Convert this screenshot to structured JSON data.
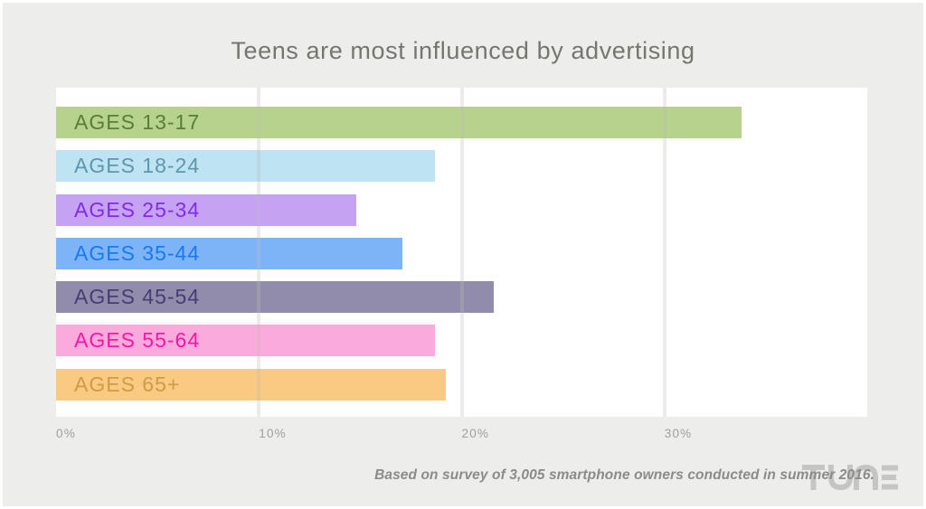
{
  "title": "Teens are most influenced by advertising",
  "footnote": "Based on survey of 3,005 smartphone owners conducted in summer 2016.",
  "brand": "TUNE",
  "colors": {
    "background": "#ededeb",
    "plot_background": "#ffffff",
    "title_text": "#76756f",
    "tick_text": "#a09f9b",
    "footnote_text": "#8b8b8b",
    "gridline": "rgba(190,189,183,0.30)",
    "brand_logo": "#c5c6c3"
  },
  "chart_data": {
    "type": "bar",
    "orientation": "horizontal",
    "title": "Teens are most influenced by advertising",
    "categories": [
      "AGES 13-17",
      "AGES 18-24",
      "AGES 25-34",
      "AGES 35-44",
      "AGES 45-54",
      "AGES 55-64",
      "AGES 65+"
    ],
    "values": [
      33.8,
      18.7,
      14.8,
      17.1,
      21.6,
      18.7,
      19.2
    ],
    "unit": "%",
    "xlabel": "",
    "ylabel": "",
    "axis_max": 40,
    "x_ticks": [
      {
        "value": 0,
        "label": "0%"
      },
      {
        "value": 10,
        "label": "10%"
      },
      {
        "value": 20,
        "label": "20%"
      },
      {
        "value": 30,
        "label": "30%"
      }
    ],
    "grid": true,
    "legend": false,
    "bar_colors": [
      "#b6d28d",
      "#bee3f2",
      "#c5a3f2",
      "#7db4f7",
      "#918cab",
      "#fbaade",
      "#fac982"
    ],
    "label_colors": [
      "#5a7e33",
      "#5f96ae",
      "#8429ee",
      "#1879f2",
      "#453e76",
      "#fa16a5",
      "#d09b44"
    ]
  }
}
